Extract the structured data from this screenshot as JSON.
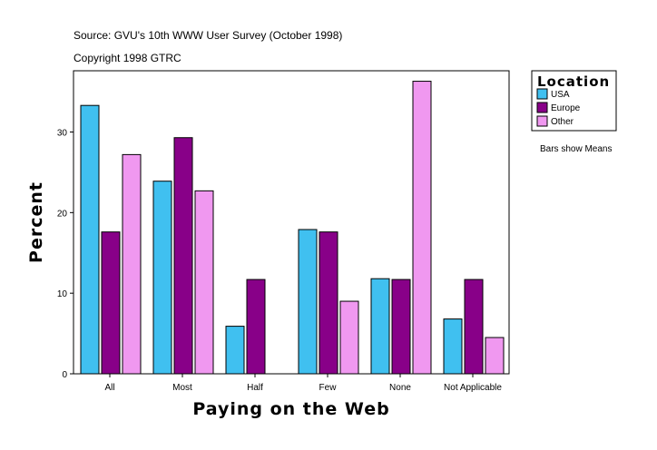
{
  "header": {
    "source": "Source: GVU's 10th WWW User Survey (October 1998)",
    "copyright": "Copyright 1998 GTRC"
  },
  "note": "Bars show Means",
  "chart_data": {
    "type": "bar",
    "xlabel": "Paying on the Web",
    "ylabel": "Percent",
    "categories": [
      "All",
      "Most",
      "Half",
      "Few",
      "None",
      "Not Applicable"
    ],
    "ylim": [
      0,
      37.6
    ],
    "yticks": [
      0,
      10,
      20,
      30
    ],
    "grid": false,
    "legend": {
      "title": "Location",
      "placement": "right"
    },
    "series": [
      {
        "name": "USA",
        "color": "#40c0f0",
        "values": [
          33.3,
          23.9,
          5.9,
          17.9,
          11.8,
          6.8
        ]
      },
      {
        "name": "Europe",
        "color": "#880088",
        "values": [
          17.6,
          29.3,
          11.7,
          17.6,
          11.7,
          11.7
        ]
      },
      {
        "name": "Other",
        "color": "#f098f0",
        "values": [
          27.2,
          22.7,
          0,
          9.0,
          36.3,
          4.5
        ]
      }
    ]
  }
}
